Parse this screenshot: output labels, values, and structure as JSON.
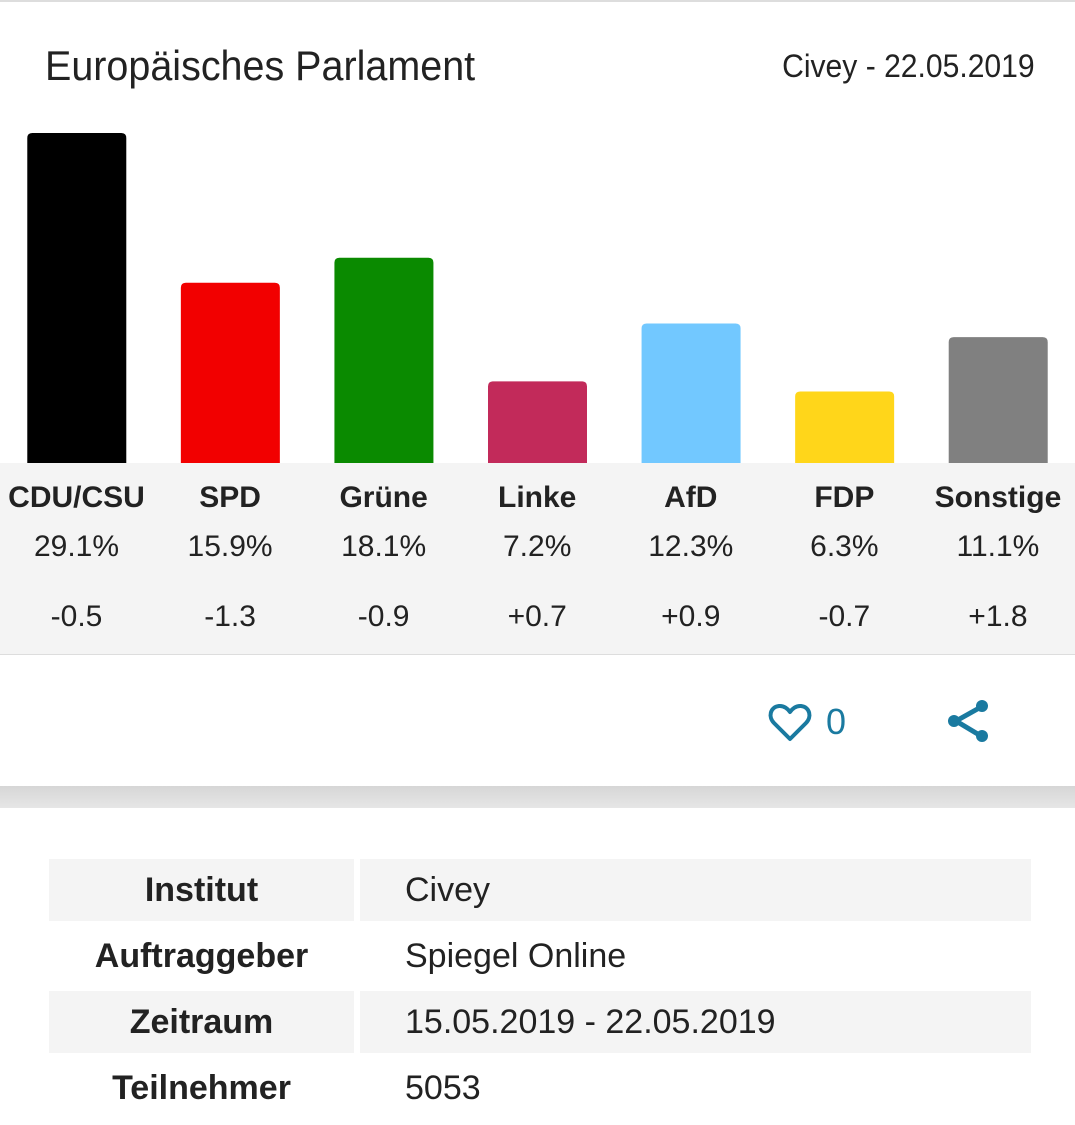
{
  "header": {
    "title": "Europäisches Parlament",
    "source": "Civey - 22.05.2019"
  },
  "chart_data": {
    "type": "bar",
    "categories": [
      "CDU/CSU",
      "SPD",
      "Grüne",
      "Linke",
      "AfD",
      "FDP",
      "Sonstige"
    ],
    "values": [
      29.1,
      15.9,
      18.1,
      7.2,
      12.3,
      6.3,
      11.1
    ],
    "value_labels": [
      "29.1%",
      "15.9%",
      "18.1%",
      "7.2%",
      "12.3%",
      "6.3%",
      "11.1%"
    ],
    "changes": [
      "-0.5",
      "-1.3",
      "-0.9",
      "+0.7",
      "+0.9",
      "-0.7",
      "+1.8"
    ],
    "colors": [
      "#000000",
      "#f20000",
      "#0a8a00",
      "#c22a5a",
      "#72c8ff",
      "#ffd61a",
      "#808080"
    ],
    "ylim": [
      0,
      29.1
    ]
  },
  "actions": {
    "like_count": "0",
    "accent": "#1a7aa0"
  },
  "details": [
    {
      "label": "Institut",
      "value": "Civey"
    },
    {
      "label": "Auftraggeber",
      "value": "Spiegel Online"
    },
    {
      "label": "Zeitraum",
      "value": "15.05.2019 - 22.05.2019"
    },
    {
      "label": "Teilnehmer",
      "value": "5053"
    }
  ]
}
